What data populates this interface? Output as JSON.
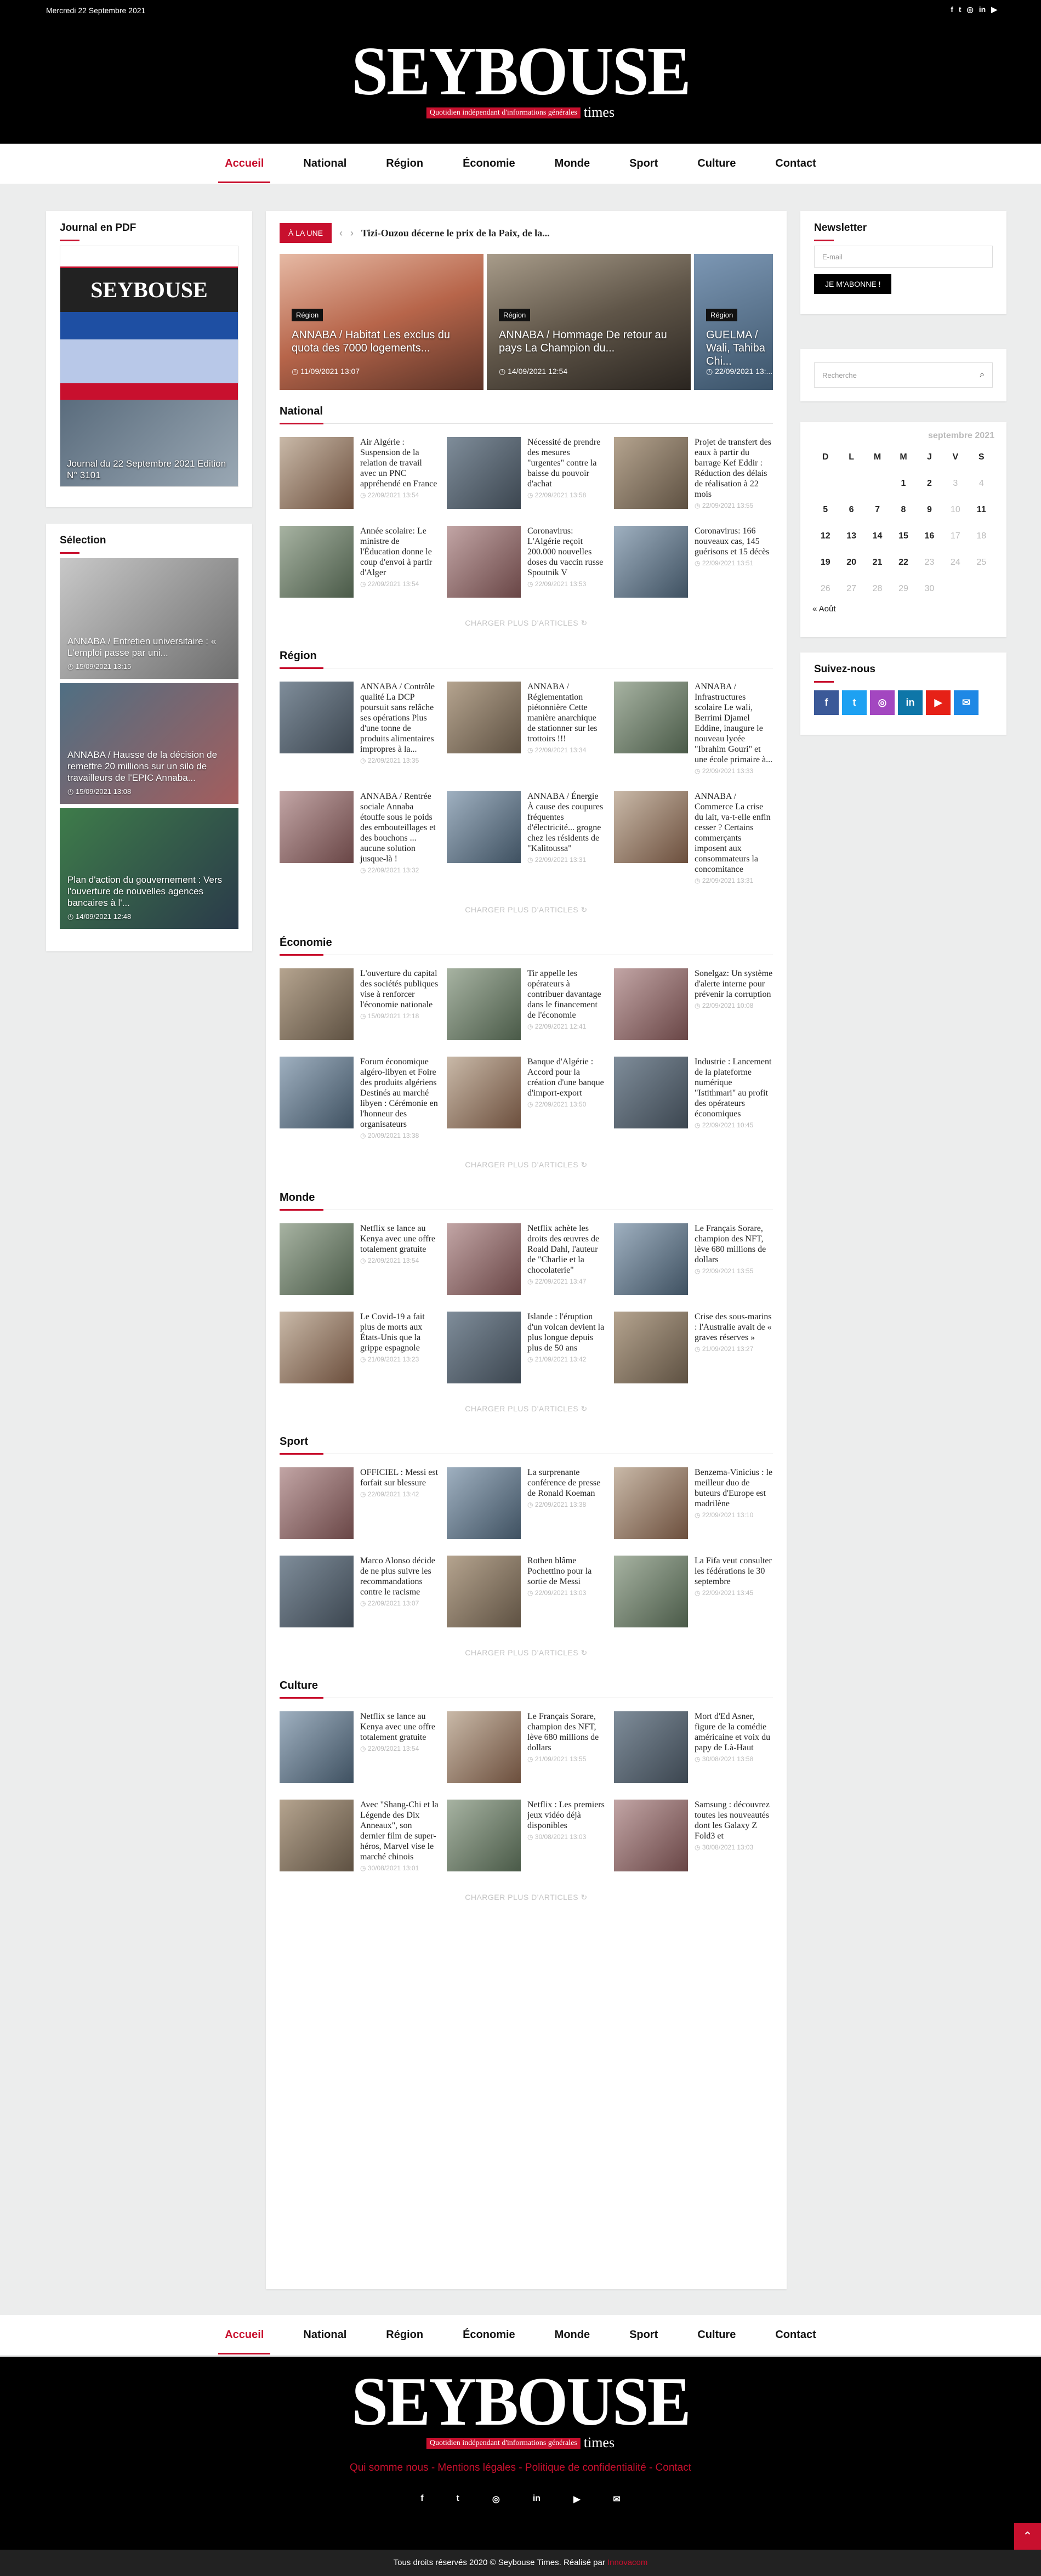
{
  "header": {
    "date": "Mercredi 22 Septembre 2021",
    "logo_word": "SEYBOUSE",
    "logo_tagline": "Quotidien indépendant d'informations générales",
    "logo_times": "times",
    "social": [
      "f",
      "t",
      "ig",
      "in",
      "yt"
    ]
  },
  "nav": {
    "items": [
      "Accueil",
      "National",
      "Région",
      "Économie",
      "Monde",
      "Sport",
      "Culture",
      "Contact"
    ]
  },
  "sidebar_left": {
    "journal_title": "Journal en PDF",
    "journal_caption": "Journal du 22 Septembre 2021 Edition N° 3101",
    "selection_title": "Sélection",
    "selection": [
      {
        "title": "ANNABA / Entretien universitaire : « L'emploi passe par uni...",
        "date": "15/09/2021 13:15"
      },
      {
        "title": "ANNABA / Hausse de la décision de remettre 20 millions sur un silo de travailleurs de l'EPIC Annaba...",
        "date": "15/09/2021 13:08"
      },
      {
        "title": "Plan d'action du gouvernement : Vers l'ouverture de nouvelles agences bancaires à l'...",
        "date": "14/09/2021 12:48"
      }
    ]
  },
  "breaking": {
    "label": "À LA UNE",
    "text": "Tizi-Ouzou décerne le prix de la Paix, de la..."
  },
  "slider": [
    {
      "tag": "Région",
      "title": "ANNABA / Habitat Les exclus du quota des 7000 logements...",
      "date": "11/09/2021 13:07"
    },
    {
      "tag": "Région",
      "title": "ANNABA / Hommage De retour au pays La Champion du...",
      "date": "14/09/2021 12:54"
    },
    {
      "tag": "Région",
      "title": "GUELMA / Wali, Tahiba Chi...",
      "date": "22/09/2021 13:..."
    }
  ],
  "load_more": "CHARGER PLUS D'ARTICLES",
  "sections": [
    {
      "name": "National",
      "articles": [
        {
          "title": "Air Algérie : Suspension de la relation de travail avec un PNC appréhendé en France",
          "date": "22/09/2021 13:54"
        },
        {
          "title": "Nécessité de prendre des mesures \"urgentes\" contre la baisse du pouvoir d'achat",
          "date": "22/09/2021 13:58"
        },
        {
          "title": "Projet de transfert des eaux à partir du barrage Kef Eddir : Réduction des délais de réalisation à 22 mois",
          "date": "22/09/2021 13:55"
        },
        {
          "title": "Année scolaire: Le ministre de l'Éducation donne le coup d'envoi à partir d'Alger",
          "date": "22/09/2021 13:54"
        },
        {
          "title": "Coronavirus: L'Algérie reçoit 200.000 nouvelles doses du vaccin russe Spoutnik V",
          "date": "22/09/2021 13:53"
        },
        {
          "title": "Coronavirus: 166 nouveaux cas, 145 guérisons et 15 décès",
          "date": "22/09/2021 13:51"
        }
      ]
    },
    {
      "name": "Région",
      "articles": [
        {
          "title": "ANNABA / Contrôle qualité La DCP poursuit sans relâche ses opérations Plus d'une tonne de produits alimentaires impropres à la...",
          "date": "22/09/2021 13:35"
        },
        {
          "title": "ANNABA / Réglementation piétonnière Cette manière anarchique de stationner sur les trottoirs !!!",
          "date": "22/09/2021 13:34"
        },
        {
          "title": "ANNABA / Infrastructures scolaire Le wali, Berrimi Djamel Eddine, inaugure le nouveau lycée \"Ibrahim Gouri\" et une école primaire à...",
          "date": "22/09/2021 13:33"
        },
        {
          "title": "ANNABA / Rentrée sociale Annaba étouffe sous le poids des embouteillages et des bouchons ... aucune solution jusque-là !",
          "date": "22/09/2021 13:32"
        },
        {
          "title": "ANNABA / Énergie À cause des coupures fréquentes d'électricité... grogne chez les résidents de \"Kalitoussa\"",
          "date": "22/09/2021 13:31"
        },
        {
          "title": "ANNABA / Commerce La crise du lait, va-t-elle enfin cesser ? Certains commerçants imposent aux consommateurs la concomitance",
          "date": "22/09/2021 13:31"
        }
      ]
    },
    {
      "name": "Économie",
      "articles": [
        {
          "title": "L'ouverture du capital des sociétés publiques vise à renforcer l'économie nationale",
          "date": "15/09/2021 12:18"
        },
        {
          "title": "Tir appelle les opérateurs à contribuer davantage dans le financement de l'économie",
          "date": "22/09/2021 12:41"
        },
        {
          "title": "Sonelgaz: Un système d'alerte interne pour prévenir la corruption",
          "date": "22/09/2021 10:08"
        },
        {
          "title": "Forum économique algéro-libyen et Foire des produits algériens Destinés au marché libyen : Cérémonie en l'honneur des organisateurs",
          "date": "20/09/2021 13:38"
        },
        {
          "title": "Banque d'Algérie : Accord pour la création d'une banque d'import-export",
          "date": "22/09/2021 13:50"
        },
        {
          "title": "Industrie : Lancement de la plateforme numérique \"Istithmari\" au profit des opérateurs économiques",
          "date": "22/09/2021 10:45"
        }
      ]
    },
    {
      "name": "Monde",
      "articles": [
        {
          "title": "Netflix se lance au Kenya avec une offre totalement gratuite",
          "date": "22/09/2021 13:54"
        },
        {
          "title": "Netflix achète les droits des œuvres de Roald Dahl, l'auteur de \"Charlie et la chocolaterie\"",
          "date": "22/09/2021 13:47"
        },
        {
          "title": "Le Français Sorare, champion des NFT, lève 680 millions de dollars",
          "date": "22/09/2021 13:55"
        },
        {
          "title": "Le Covid-19 a fait plus de morts aux États-Unis que la grippe espagnole",
          "date": "21/09/2021 13:23"
        },
        {
          "title": "Islande : l'éruption d'un volcan devient la plus longue depuis plus de 50 ans",
          "date": "21/09/2021 13:42"
        },
        {
          "title": "Crise des sous-marins : l'Australie avait de « graves réserves »",
          "date": "21/09/2021 13:27"
        }
      ]
    },
    {
      "name": "Sport",
      "articles": [
        {
          "title": "OFFICIEL : Messi est forfait sur blessure",
          "date": "22/09/2021 13:42"
        },
        {
          "title": "La surprenante conférence de presse de Ronald Koeman",
          "date": "22/09/2021 13:38"
        },
        {
          "title": "Benzema-Vinicius : le meilleur duo de buteurs d'Europe est madrilène",
          "date": "22/09/2021 13:10"
        },
        {
          "title": "Marco Alonso décide de ne plus suivre les recommandations contre le racisme",
          "date": "22/09/2021 13:07"
        },
        {
          "title": "Rothen blâme Pochettino pour la sortie de Messi",
          "date": "22/09/2021 13:03"
        },
        {
          "title": "La Fifa veut consulter les fédérations le 30 septembre",
          "date": "22/09/2021 13:45"
        }
      ]
    },
    {
      "name": "Culture",
      "articles": [
        {
          "title": "Netflix se lance au Kenya avec une offre totalement gratuite",
          "date": "22/09/2021 13:54"
        },
        {
          "title": "Le Français Sorare, champion des NFT, lève 680 millions de dollars",
          "date": "21/09/2021 13:55"
        },
        {
          "title": "Mort d'Ed Asner, figure de la comédie américaine et voix du papy de Là-Haut",
          "date": "30/08/2021 13:58"
        },
        {
          "title": "Avec \"Shang-Chi et la Légende des Dix Anneaux\", son dernier film de super-héros, Marvel vise le marché chinois",
          "date": "30/08/2021 13:01"
        },
        {
          "title": "Netflix : Les premiers jeux vidéo déjà disponibles",
          "date": "30/08/2021 13:03"
        },
        {
          "title": "Samsung : découvrez toutes les nouveautés dont les Galaxy Z Fold3 et",
          "date": "30/08/2021 13:03"
        }
      ]
    }
  ],
  "sidebar_right": {
    "newsletter_title": "Newsletter",
    "email_placeholder": "E-mail",
    "subscribe": "JE M'ABONNE !",
    "search_placeholder": "Recherche",
    "calendar": {
      "month": "septembre 2021",
      "days": [
        "D",
        "L",
        "M",
        "M",
        "J",
        "V",
        "S"
      ],
      "weeks": [
        [
          "",
          "",
          "",
          "1",
          "2",
          "3",
          "4"
        ],
        [
          "5",
          "6",
          "7",
          "8",
          "9",
          "10",
          "11"
        ],
        [
          "12",
          "13",
          "14",
          "15",
          "16",
          "17",
          "18"
        ],
        [
          "19",
          "20",
          "21",
          "22",
          "23",
          "24",
          "25"
        ],
        [
          "26",
          "27",
          "28",
          "29",
          "30",
          "",
          ""
        ]
      ],
      "prev": "« Août"
    },
    "follow_title": "Suivez-nous"
  },
  "footer": {
    "links": "Qui somme nous - Mentions légales - Politique de confidentialité - Contact",
    "copyright": "Tous droits réservés 2020 © Seybouse Times. Réalisé par ",
    "credit": "Innovacom"
  },
  "colors": {
    "accent": "#c8102e",
    "facebook": "#3b5998",
    "twitter": "#1da1f2",
    "instagram": "#a347c0",
    "linkedin": "#0e76a8",
    "youtube": "#e62117",
    "email": "#1e88e5"
  }
}
